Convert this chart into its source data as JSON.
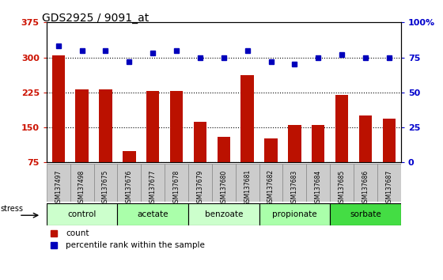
{
  "title": "GDS2925 / 9091_at",
  "samples": [
    "GSM137497",
    "GSM137498",
    "GSM137675",
    "GSM137676",
    "GSM137677",
    "GSM137678",
    "GSM137679",
    "GSM137680",
    "GSM137681",
    "GSM137682",
    "GSM137683",
    "GSM137684",
    "GSM137685",
    "GSM137686",
    "GSM137687"
  ],
  "counts": [
    305,
    232,
    232,
    100,
    228,
    228,
    162,
    130,
    262,
    127,
    155,
    155,
    220,
    175,
    168
  ],
  "percentile_ranks": [
    83,
    80,
    80,
    72,
    78,
    80,
    75,
    75,
    80,
    72,
    70,
    75,
    77,
    75,
    75
  ],
  "groups": [
    {
      "label": "control",
      "start": 0,
      "end": 2,
      "color": "#ccffcc"
    },
    {
      "label": "acetate",
      "start": 3,
      "end": 5,
      "color": "#aaffaa"
    },
    {
      "label": "benzoate",
      "start": 6,
      "end": 8,
      "color": "#ccffcc"
    },
    {
      "label": "propionate",
      "start": 9,
      "end": 11,
      "color": "#aaffaa"
    },
    {
      "label": "sorbate",
      "start": 12,
      "end": 14,
      "color": "#44dd44"
    }
  ],
  "stress_label": "stress",
  "ylim_left": [
    75,
    375
  ],
  "ylim_right": [
    0,
    100
  ],
  "yticks_left": [
    75,
    150,
    225,
    300,
    375
  ],
  "yticks_right": [
    0,
    25,
    50,
    75,
    100
  ],
  "ytick_labels_left": [
    "75",
    "150",
    "225",
    "300",
    "375"
  ],
  "ytick_labels_right": [
    "0",
    "25",
    "50",
    "75",
    "100%"
  ],
  "bar_color": "#bb1100",
  "dot_color": "#0000bb",
  "grid_color": "#000000",
  "plot_bg_color": "#ffffff",
  "sample_cell_color": "#cccccc",
  "title_fontsize": 10,
  "axis_label_color_left": "#cc1100",
  "axis_label_color_right": "#0000cc",
  "legend_red_label": "count",
  "legend_blue_label": "percentile rank within the sample"
}
